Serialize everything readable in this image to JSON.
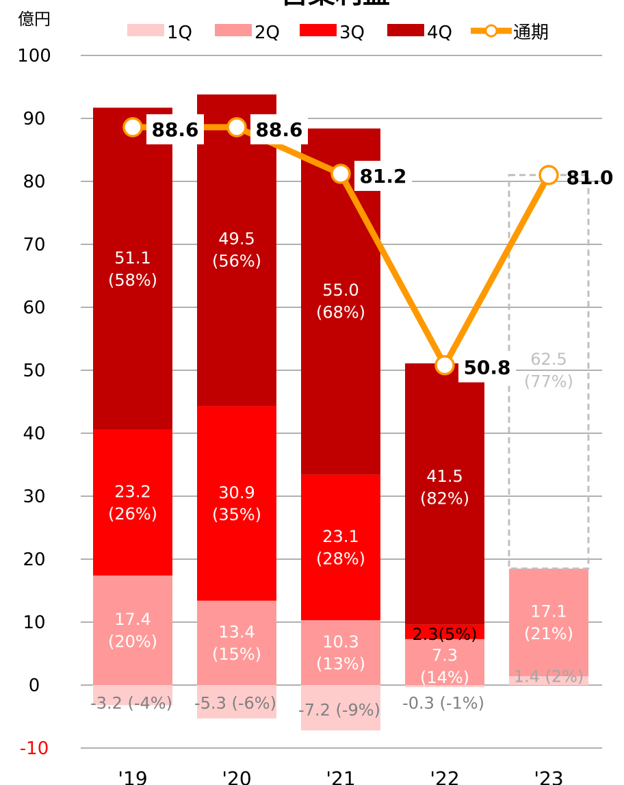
{
  "chart_data": {
    "type": "bar",
    "title": "営業利益",
    "unit_label": "億円",
    "ylim": [
      -10,
      100
    ],
    "y_ticks": [
      -10,
      0,
      10,
      20,
      30,
      40,
      50,
      60,
      70,
      80,
      90,
      100
    ],
    "categories": [
      "'19",
      "'20",
      "'21",
      "'22",
      "'23"
    ],
    "legend": [
      {
        "name": "1Q",
        "color": "#ffcccc",
        "kind": "bar"
      },
      {
        "name": "2Q",
        "color": "#ff9999",
        "kind": "bar"
      },
      {
        "name": "3Q",
        "color": "#ff0000",
        "kind": "bar"
      },
      {
        "name": "4Q",
        "color": "#c00000",
        "kind": "bar"
      },
      {
        "name": "通期",
        "color": "#ff9900",
        "kind": "line"
      }
    ],
    "series": [
      {
        "name": "1Q",
        "values": [
          -3.2,
          -5.3,
          -7.2,
          -0.3,
          1.4
        ],
        "labels": [
          "-3.2 (-4%)",
          "-5.3 (-6%)",
          "-7.2 (-9%)",
          "-0.3 (-1%)",
          "1.4 (2%)"
        ]
      },
      {
        "name": "2Q",
        "values": [
          17.4,
          13.4,
          10.3,
          7.3,
          17.1
        ],
        "labels": [
          "17.4\n(20%)",
          "13.4\n(15%)",
          "10.3\n(13%)",
          "7.3\n(14%)",
          "17.1\n(21%)"
        ]
      },
      {
        "name": "3Q",
        "values": [
          23.2,
          30.9,
          23.1,
          2.3,
          null
        ],
        "labels": [
          "23.2\n(26%)",
          "30.9\n(35%)",
          "23.1\n(28%)",
          "2.3(5%)",
          ""
        ]
      },
      {
        "name": "4Q",
        "values": [
          51.1,
          49.5,
          55.0,
          41.5,
          62.5
        ],
        "labels": [
          "51.1\n(58%)",
          "49.5\n(56%)",
          "55.0\n(68%)",
          "41.5\n(82%)",
          "62.5\n(77%)"
        ],
        "forecast_last": true
      }
    ],
    "total_line": {
      "name": "通期",
      "values": [
        88.6,
        88.6,
        81.2,
        50.8,
        81.0
      ],
      "labels": [
        "88.6",
        "88.6",
        "81.2",
        "50.8",
        "81.0"
      ]
    },
    "colors": {
      "q1": "#ffcccc",
      "q2": "#ff9999",
      "q3": "#ff0000",
      "q4": "#c00000",
      "line": "#ff9900",
      "forecast_border": "#bfbfbf",
      "forecast_text": "#bfbfbf",
      "grid": "#808080",
      "negative_tick": "#ff0000"
    }
  }
}
